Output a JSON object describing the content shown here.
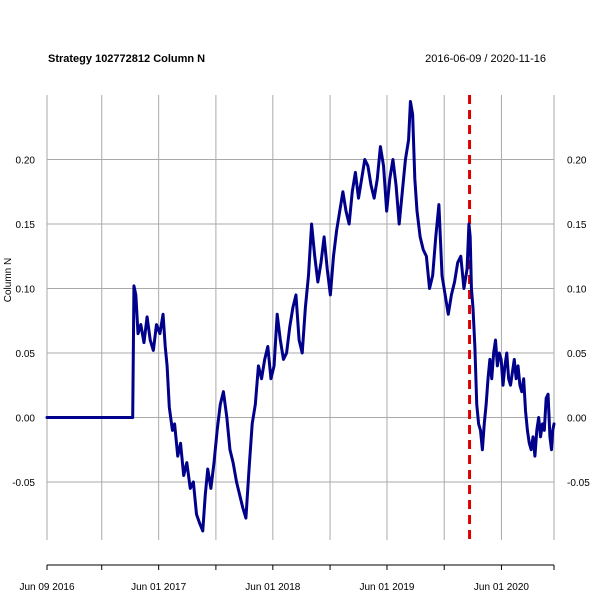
{
  "chart_data": {
    "type": "line",
    "title": "Strategy 102772812 Column N",
    "date_range": "2016-06-09 / 2020-11-16",
    "ylabel": "Column N",
    "xlabel": "",
    "ylim": [
      -0.095,
      0.25
    ],
    "xlim": [
      "2016-06-09",
      "2020-11-16"
    ],
    "y_ticks": [
      -0.05,
      0.0,
      0.05,
      0.1,
      0.15,
      0.2
    ],
    "y_tick_labels": [
      "-0.05",
      "0.00",
      "0.05",
      "0.10",
      "0.15",
      "0.20"
    ],
    "x_tick_labels": [
      {
        "date": "2016-06-09",
        "label": "Jun 09 2016"
      },
      {
        "date": "2017-06-01",
        "label": "Jun 01 2017"
      },
      {
        "date": "2018-06-01",
        "label": "Jun 01 2018"
      },
      {
        "date": "2019-06-01",
        "label": "Jun 01 2019"
      },
      {
        "date": "2020-06-01",
        "label": "Jun 01 2020"
      }
    ],
    "x_gridlines": [
      "2016-06-09",
      "2016-12-01",
      "2017-06-01",
      "2017-12-01",
      "2018-06-01",
      "2018-12-01",
      "2019-06-01",
      "2019-12-01",
      "2020-06-01",
      "2020-11-16"
    ],
    "grid": true,
    "vline": {
      "date": "2020-02-20",
      "color": "#dd0000",
      "style": "dashed"
    },
    "series": [
      {
        "name": "Column N",
        "color": "#00008b",
        "points": [
          [
            "2016-06-09",
            0.0
          ],
          [
            "2017-03-10",
            0.0
          ],
          [
            "2017-03-14",
            0.102
          ],
          [
            "2017-03-20",
            0.095
          ],
          [
            "2017-03-27",
            0.065
          ],
          [
            "2017-04-05",
            0.072
          ],
          [
            "2017-04-15",
            0.058
          ],
          [
            "2017-04-25",
            0.078
          ],
          [
            "2017-05-05",
            0.06
          ],
          [
            "2017-05-15",
            0.052
          ],
          [
            "2017-05-25",
            0.072
          ],
          [
            "2017-06-05",
            0.065
          ],
          [
            "2017-06-15",
            0.08
          ],
          [
            "2017-06-22",
            0.055
          ],
          [
            "2017-06-28",
            0.04
          ],
          [
            "2017-07-05",
            0.008
          ],
          [
            "2017-07-15",
            -0.01
          ],
          [
            "2017-07-22",
            -0.005
          ],
          [
            "2017-08-01",
            -0.03
          ],
          [
            "2017-08-10",
            -0.02
          ],
          [
            "2017-08-20",
            -0.045
          ],
          [
            "2017-08-30",
            -0.035
          ],
          [
            "2017-09-10",
            -0.055
          ],
          [
            "2017-09-20",
            -0.05
          ],
          [
            "2017-09-30",
            -0.075
          ],
          [
            "2017-10-10",
            -0.082
          ],
          [
            "2017-10-20",
            -0.088
          ],
          [
            "2017-10-28",
            -0.06
          ],
          [
            "2017-11-05",
            -0.04
          ],
          [
            "2017-11-15",
            -0.055
          ],
          [
            "2017-11-25",
            -0.035
          ],
          [
            "2017-12-05",
            -0.01
          ],
          [
            "2017-12-15",
            0.01
          ],
          [
            "2017-12-25",
            0.02
          ],
          [
            "2018-01-05",
            0.0
          ],
          [
            "2018-01-15",
            -0.025
          ],
          [
            "2018-01-25",
            -0.035
          ],
          [
            "2018-02-05",
            -0.05
          ],
          [
            "2018-02-15",
            -0.06
          ],
          [
            "2018-02-25",
            -0.07
          ],
          [
            "2018-03-07",
            -0.078
          ],
          [
            "2018-03-17",
            -0.04
          ],
          [
            "2018-03-27",
            -0.005
          ],
          [
            "2018-04-06",
            0.01
          ],
          [
            "2018-04-16",
            0.04
          ],
          [
            "2018-04-26",
            0.03
          ],
          [
            "2018-05-06",
            0.045
          ],
          [
            "2018-05-16",
            0.055
          ],
          [
            "2018-05-26",
            0.03
          ],
          [
            "2018-06-05",
            0.04
          ],
          [
            "2018-06-15",
            0.08
          ],
          [
            "2018-06-25",
            0.06
          ],
          [
            "2018-07-05",
            0.045
          ],
          [
            "2018-07-15",
            0.05
          ],
          [
            "2018-07-25",
            0.07
          ],
          [
            "2018-08-04",
            0.085
          ],
          [
            "2018-08-14",
            0.095
          ],
          [
            "2018-08-24",
            0.06
          ],
          [
            "2018-09-03",
            0.05
          ],
          [
            "2018-09-13",
            0.085
          ],
          [
            "2018-09-23",
            0.11
          ],
          [
            "2018-10-03",
            0.15
          ],
          [
            "2018-10-13",
            0.125
          ],
          [
            "2018-10-23",
            0.105
          ],
          [
            "2018-11-02",
            0.12
          ],
          [
            "2018-11-12",
            0.14
          ],
          [
            "2018-11-22",
            0.115
          ],
          [
            "2018-12-02",
            0.095
          ],
          [
            "2018-12-12",
            0.125
          ],
          [
            "2018-12-22",
            0.145
          ],
          [
            "2019-01-01",
            0.16
          ],
          [
            "2019-01-11",
            0.175
          ],
          [
            "2019-01-21",
            0.16
          ],
          [
            "2019-01-31",
            0.15
          ],
          [
            "2019-02-10",
            0.175
          ],
          [
            "2019-02-20",
            0.19
          ],
          [
            "2019-03-02",
            0.17
          ],
          [
            "2019-03-12",
            0.185
          ],
          [
            "2019-03-22",
            0.2
          ],
          [
            "2019-04-01",
            0.195
          ],
          [
            "2019-04-11",
            0.18
          ],
          [
            "2019-04-21",
            0.17
          ],
          [
            "2019-05-01",
            0.185
          ],
          [
            "2019-05-11",
            0.21
          ],
          [
            "2019-05-21",
            0.195
          ],
          [
            "2019-05-31",
            0.16
          ],
          [
            "2019-06-10",
            0.185
          ],
          [
            "2019-06-20",
            0.2
          ],
          [
            "2019-06-30",
            0.18
          ],
          [
            "2019-07-10",
            0.15
          ],
          [
            "2019-07-20",
            0.175
          ],
          [
            "2019-07-30",
            0.2
          ],
          [
            "2019-08-09",
            0.215
          ],
          [
            "2019-08-15",
            0.245
          ],
          [
            "2019-08-22",
            0.235
          ],
          [
            "2019-08-29",
            0.185
          ],
          [
            "2019-09-05",
            0.16
          ],
          [
            "2019-09-15",
            0.14
          ],
          [
            "2019-09-25",
            0.13
          ],
          [
            "2019-10-05",
            0.125
          ],
          [
            "2019-10-15",
            0.1
          ],
          [
            "2019-10-25",
            0.11
          ],
          [
            "2019-11-04",
            0.14
          ],
          [
            "2019-11-14",
            0.165
          ],
          [
            "2019-11-24",
            0.11
          ],
          [
            "2019-12-04",
            0.095
          ],
          [
            "2019-12-14",
            0.08
          ],
          [
            "2019-12-24",
            0.095
          ],
          [
            "2020-01-03",
            0.105
          ],
          [
            "2020-01-13",
            0.12
          ],
          [
            "2020-01-23",
            0.125
          ],
          [
            "2020-02-02",
            0.1
          ],
          [
            "2020-02-12",
            0.115
          ],
          [
            "2020-02-18",
            0.15
          ],
          [
            "2020-02-22",
            0.14
          ],
          [
            "2020-02-26",
            0.1
          ],
          [
            "2020-03-02",
            0.085
          ],
          [
            "2020-03-08",
            0.055
          ],
          [
            "2020-03-14",
            0.01
          ],
          [
            "2020-03-20",
            -0.005
          ],
          [
            "2020-03-26",
            -0.01
          ],
          [
            "2020-04-01",
            -0.025
          ],
          [
            "2020-04-07",
            -0.005
          ],
          [
            "2020-04-13",
            0.01
          ],
          [
            "2020-04-19",
            0.03
          ],
          [
            "2020-04-25",
            0.045
          ],
          [
            "2020-05-01",
            0.03
          ],
          [
            "2020-05-07",
            0.05
          ],
          [
            "2020-05-13",
            0.06
          ],
          [
            "2020-05-19",
            0.04
          ],
          [
            "2020-05-25",
            0.05
          ],
          [
            "2020-05-31",
            0.045
          ],
          [
            "2020-06-06",
            0.025
          ],
          [
            "2020-06-12",
            0.04
          ],
          [
            "2020-06-18",
            0.05
          ],
          [
            "2020-06-24",
            0.03
          ],
          [
            "2020-06-30",
            0.025
          ],
          [
            "2020-07-06",
            0.035
          ],
          [
            "2020-07-12",
            0.045
          ],
          [
            "2020-07-18",
            0.03
          ],
          [
            "2020-07-24",
            0.04
          ],
          [
            "2020-07-30",
            0.025
          ],
          [
            "2020-08-05",
            0.02
          ],
          [
            "2020-08-11",
            0.03
          ],
          [
            "2020-08-17",
            0.005
          ],
          [
            "2020-08-23",
            -0.01
          ],
          [
            "2020-08-29",
            -0.02
          ],
          [
            "2020-09-04",
            -0.025
          ],
          [
            "2020-09-10",
            -0.015
          ],
          [
            "2020-09-16",
            -0.03
          ],
          [
            "2020-09-22",
            -0.01
          ],
          [
            "2020-09-28",
            0.0
          ],
          [
            "2020-10-04",
            -0.015
          ],
          [
            "2020-10-10",
            -0.005
          ],
          [
            "2020-10-16",
            -0.01
          ],
          [
            "2020-10-22",
            0.015
          ],
          [
            "2020-10-28",
            0.018
          ],
          [
            "2020-11-03",
            -0.015
          ],
          [
            "2020-11-08",
            -0.025
          ],
          [
            "2020-11-12",
            -0.01
          ],
          [
            "2020-11-16",
            -0.005
          ]
        ]
      }
    ]
  }
}
